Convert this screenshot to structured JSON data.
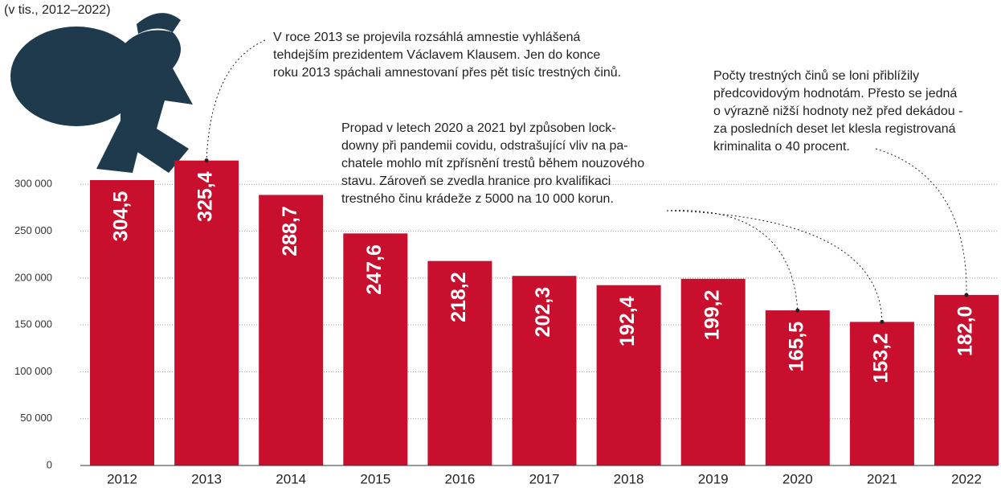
{
  "chart_data": {
    "type": "bar",
    "subtitle": "(v tis., 2012–2022)",
    "categories": [
      "2012",
      "2013",
      "2014",
      "2015",
      "2016",
      "2017",
      "2018",
      "2019",
      "2020",
      "2021",
      "2022"
    ],
    "values": [
      304500,
      325400,
      288700,
      247600,
      218200,
      202300,
      192400,
      199200,
      165500,
      153200,
      182000
    ],
    "value_labels": [
      "304,5",
      "325,4",
      "288,7",
      "247,6",
      "218,2",
      "202,3",
      "192,4",
      "199,2",
      "165,5",
      "153,2",
      "182,0"
    ],
    "color": "#c8102e",
    "ylim": [
      0,
      350000
    ],
    "yticks": [
      0,
      {
        "value": 50000,
        "label": "50 000"
      },
      {
        "value": 100000,
        "label": "100 000"
      },
      {
        "value": 150000,
        "label": "150 000"
      },
      {
        "value": 200000,
        "label": "200 000"
      },
      {
        "value": 250000,
        "label": "250 000"
      },
      {
        "value": 300000,
        "label": "300 000"
      }
    ],
    "grid": true,
    "annotations": [
      {
        "lines": [
          "V roce 2013 se projevila rozsáhlá amnestie vyhlášená",
          "tehdejším prezidentem Václavem Klausem. Jen do konce",
          "roku 2013 spáchali amnestovaní přes pět tisíc trestných činů."
        ]
      },
      {
        "lines": [
          "Propad v letech 2020 a 2021 byl způsoben lock-",
          "downy při pandemii covidu, odstrašující vliv na pa-",
          "chatele mohlo mít zpřísnění trestů během nouzového",
          "stavu. Zároveň se zvedla hranice pro kvalifikaci",
          "trestného činu krádeže z 5000 na 10 000 korun."
        ]
      },
      {
        "lines": [
          "Počty trestných činů se loni přiblížily",
          "předcovidovým hodnotám. Přesto se jedná",
          "o výrazně nižší hodnoty než před dekádou -",
          "za posledních deset let klesla registrovaná",
          "kriminalita o 40 procent."
        ]
      }
    ]
  }
}
